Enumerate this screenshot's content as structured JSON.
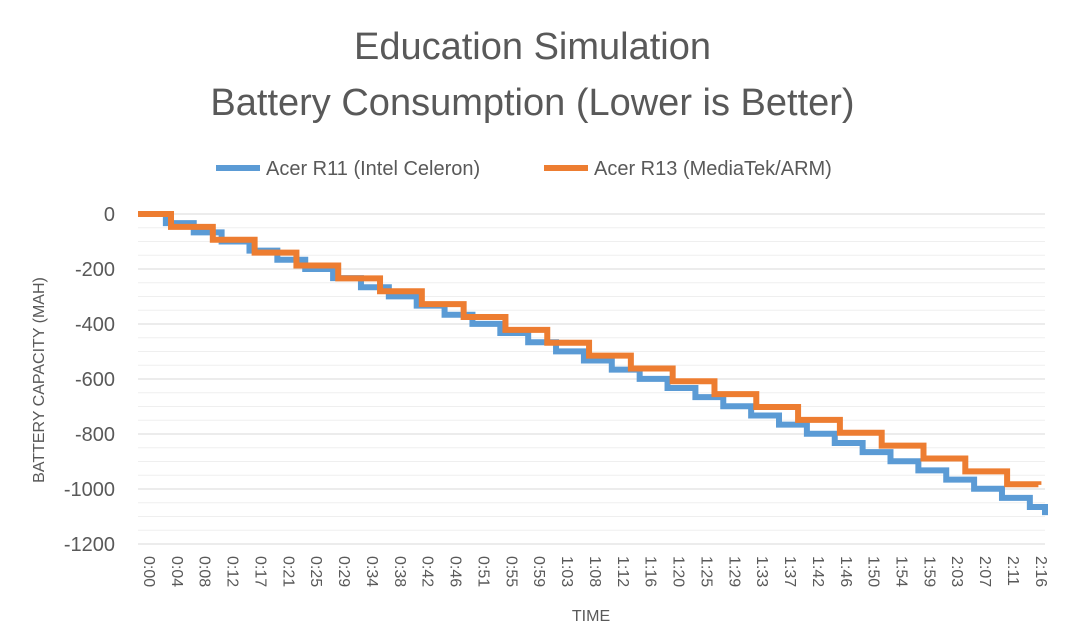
{
  "chart_data": {
    "type": "line",
    "title": [
      "Education Simulation",
      "Battery Consumption (Lower is Better)"
    ],
    "xlabel": "TIME",
    "ylabel": "BATTERY CAPACITY (MAH)",
    "ylim": [
      -1200,
      0
    ],
    "y_ticks": [
      0,
      -200,
      -400,
      -600,
      -800,
      -1000,
      -1200
    ],
    "minor_grid_step": 50,
    "grid": true,
    "legend_position": "top",
    "x_ticks": [
      "0:00",
      "0:04",
      "0:08",
      "0:12",
      "0:17",
      "0:21",
      "0:25",
      "0:29",
      "0:34",
      "0:38",
      "0:42",
      "0:46",
      "0:51",
      "0:55",
      "0:59",
      "1:03",
      "1:08",
      "1:12",
      "1:16",
      "1:20",
      "1:25",
      "1:29",
      "1:33",
      "1:37",
      "1:42",
      "1:46",
      "1:50",
      "1:54",
      "1:59",
      "2:03",
      "2:07",
      "2:11",
      "2:16"
    ],
    "x_tick_step_minutes": 4.222,
    "x_max_minutes": 137.4,
    "series": [
      {
        "name": "Acer R11 (Intel Celeron)",
        "color": "#5b9bd5",
        "step_minutes": 4.222,
        "step_mah": -33.3,
        "final_time_minutes": 137.4,
        "final_value": -1095
      },
      {
        "name": "Acer R13 (MediaTek/ARM)",
        "color": "#ed7d31",
        "step_minutes": 6.333,
        "step_mah": -46.8,
        "first_step_minutes": 5.0,
        "final_time_minutes": 136.4,
        "final_value": -985
      }
    ]
  }
}
